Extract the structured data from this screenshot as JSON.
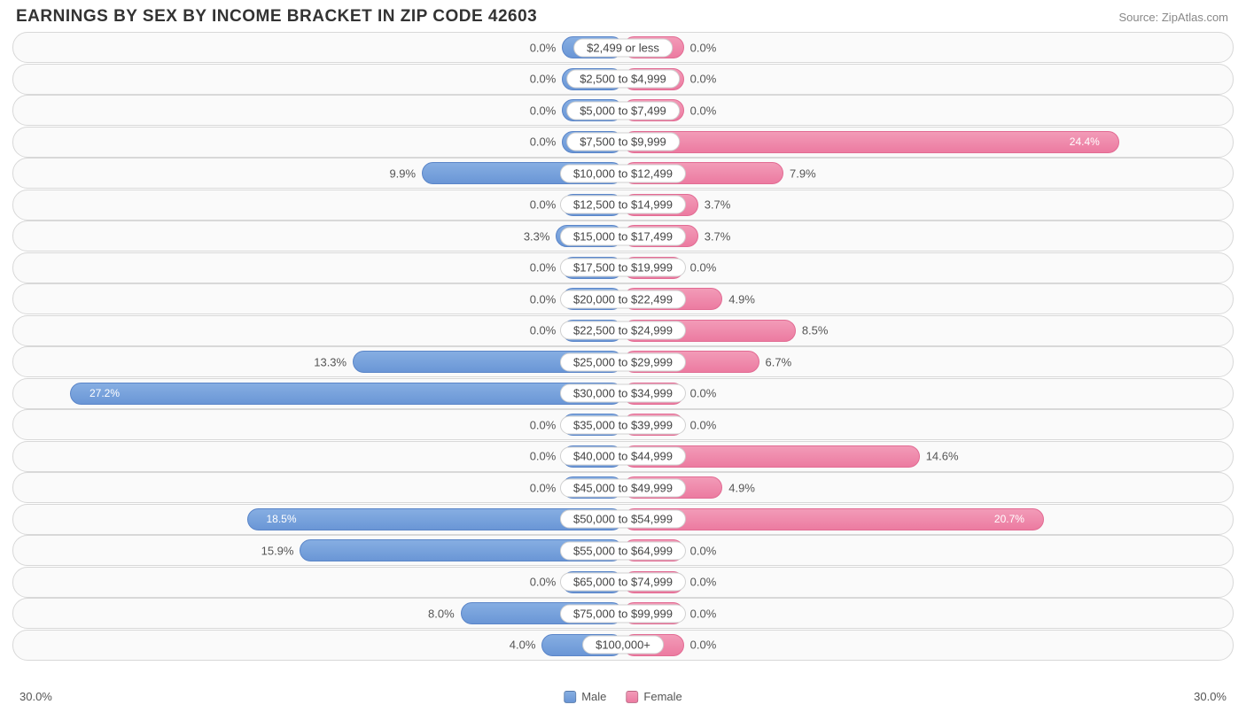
{
  "title": "EARNINGS BY SEX BY INCOME BRACKET IN ZIP CODE 42603",
  "source": "Source: ZipAtlas.com",
  "axis_max_pct": 30.0,
  "axis_label_left": "30.0%",
  "axis_label_right": "30.0%",
  "min_bar_pct": 3.0,
  "colors": {
    "male_fill_top": "#86aee2",
    "male_fill_bottom": "#6a96d6",
    "male_border": "#5a85c8",
    "female_fill_top": "#f29bb8",
    "female_fill_bottom": "#ec7ba1",
    "female_border": "#e26b93",
    "row_bg": "#fafafa",
    "row_border": "#d8d8d8",
    "text": "#555",
    "title_text": "#333",
    "source_text": "#888"
  },
  "legend": {
    "male": "Male",
    "female": "Female"
  },
  "brackets": [
    {
      "label": "$2,499 or less",
      "male": 0.0,
      "female": 0.0
    },
    {
      "label": "$2,500 to $4,999",
      "male": 0.0,
      "female": 0.0
    },
    {
      "label": "$5,000 to $7,499",
      "male": 0.0,
      "female": 0.0
    },
    {
      "label": "$7,500 to $9,999",
      "male": 0.0,
      "female": 24.4
    },
    {
      "label": "$10,000 to $12,499",
      "male": 9.9,
      "female": 7.9
    },
    {
      "label": "$12,500 to $14,999",
      "male": 0.0,
      "female": 3.7
    },
    {
      "label": "$15,000 to $17,499",
      "male": 3.3,
      "female": 3.7
    },
    {
      "label": "$17,500 to $19,999",
      "male": 0.0,
      "female": 0.0
    },
    {
      "label": "$20,000 to $22,499",
      "male": 0.0,
      "female": 4.9
    },
    {
      "label": "$22,500 to $24,999",
      "male": 0.0,
      "female": 8.5
    },
    {
      "label": "$25,000 to $29,999",
      "male": 13.3,
      "female": 6.7
    },
    {
      "label": "$30,000 to $34,999",
      "male": 27.2,
      "female": 0.0
    },
    {
      "label": "$35,000 to $39,999",
      "male": 0.0,
      "female": 0.0
    },
    {
      "label": "$40,000 to $44,999",
      "male": 0.0,
      "female": 14.6
    },
    {
      "label": "$45,000 to $49,999",
      "male": 0.0,
      "female": 4.9
    },
    {
      "label": "$50,000 to $54,999",
      "male": 18.5,
      "female": 20.7
    },
    {
      "label": "$55,000 to $64,999",
      "male": 15.9,
      "female": 0.0
    },
    {
      "label": "$65,000 to $74,999",
      "male": 0.0,
      "female": 0.0
    },
    {
      "label": "$75,000 to $99,999",
      "male": 8.0,
      "female": 0.0
    },
    {
      "label": "$100,000+",
      "male": 4.0,
      "female": 0.0
    }
  ]
}
